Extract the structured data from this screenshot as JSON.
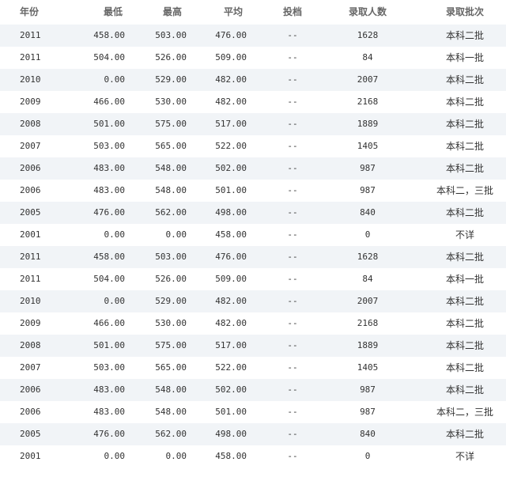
{
  "table": {
    "headers": [
      "年份",
      "最低",
      "最高",
      "平均",
      "投档",
      "录取人数",
      "录取批次"
    ],
    "rows": [
      [
        "2011",
        "458.00",
        "503.00",
        "476.00",
        "--",
        "1628",
        "本科二批"
      ],
      [
        "2011",
        "504.00",
        "526.00",
        "509.00",
        "--",
        "84",
        "本科一批"
      ],
      [
        "2010",
        "0.00",
        "529.00",
        "482.00",
        "--",
        "2007",
        "本科二批"
      ],
      [
        "2009",
        "466.00",
        "530.00",
        "482.00",
        "--",
        "2168",
        "本科二批"
      ],
      [
        "2008",
        "501.00",
        "575.00",
        "517.00",
        "--",
        "1889",
        "本科二批"
      ],
      [
        "2007",
        "503.00",
        "565.00",
        "522.00",
        "--",
        "1405",
        "本科二批"
      ],
      [
        "2006",
        "483.00",
        "548.00",
        "502.00",
        "--",
        "987",
        "本科二批"
      ],
      [
        "2006",
        "483.00",
        "548.00",
        "501.00",
        "--",
        "987",
        "本科二，三批"
      ],
      [
        "2005",
        "476.00",
        "562.00",
        "498.00",
        "--",
        "840",
        "本科二批"
      ],
      [
        "2001",
        "0.00",
        "0.00",
        "458.00",
        "--",
        "0",
        "不详"
      ],
      [
        "2011",
        "458.00",
        "503.00",
        "476.00",
        "--",
        "1628",
        "本科二批"
      ],
      [
        "2011",
        "504.00",
        "526.00",
        "509.00",
        "--",
        "84",
        "本科一批"
      ],
      [
        "2010",
        "0.00",
        "529.00",
        "482.00",
        "--",
        "2007",
        "本科二批"
      ],
      [
        "2009",
        "466.00",
        "530.00",
        "482.00",
        "--",
        "2168",
        "本科二批"
      ],
      [
        "2008",
        "501.00",
        "575.00",
        "517.00",
        "--",
        "1889",
        "本科二批"
      ],
      [
        "2007",
        "503.00",
        "565.00",
        "522.00",
        "--",
        "1405",
        "本科二批"
      ],
      [
        "2006",
        "483.00",
        "548.00",
        "502.00",
        "--",
        "987",
        "本科二批"
      ],
      [
        "2006",
        "483.00",
        "548.00",
        "501.00",
        "--",
        "987",
        "本科二，三批"
      ],
      [
        "2005",
        "476.00",
        "562.00",
        "498.00",
        "--",
        "840",
        "本科二批"
      ],
      [
        "2001",
        "0.00",
        "0.00",
        "458.00",
        "--",
        "0",
        "不详"
      ]
    ]
  },
  "colors": {
    "stripe": "#f1f4f7",
    "header_text": "#666666"
  }
}
